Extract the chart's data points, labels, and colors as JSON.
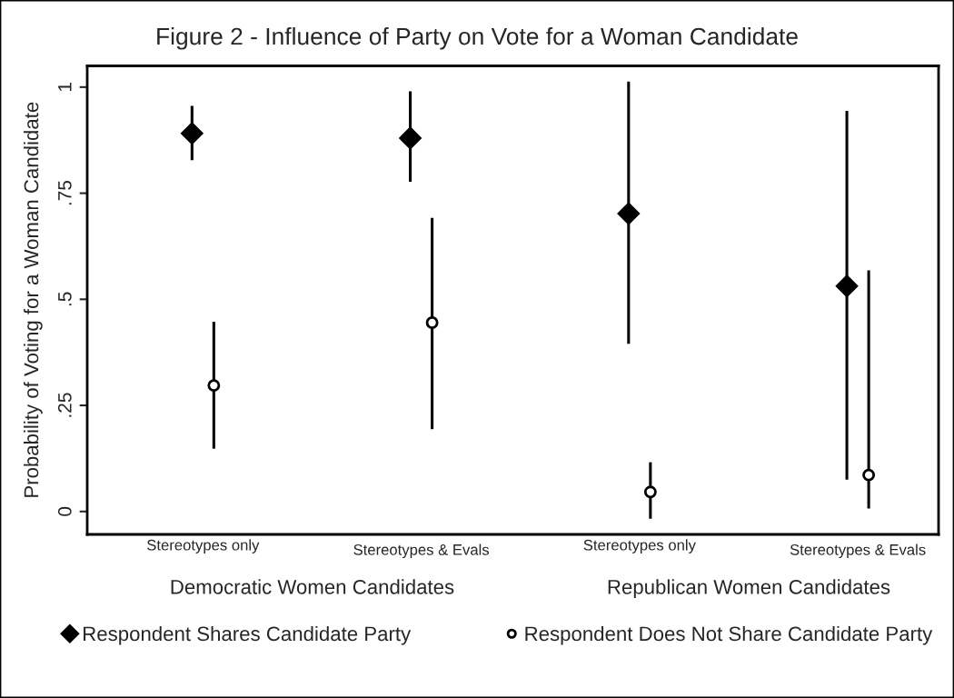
{
  "chart_data": {
    "type": "scatter",
    "title": "Figure 2 - Influence of Party on Vote for a Woman Candidate",
    "ylabel": "Probability of Voting for a Woman Candidate",
    "categories": [
      "Stereotypes only",
      "Stereotypes & Evals",
      "Stereotypes only",
      "Stereotypes & Evals"
    ],
    "annotations": [
      "Democratic Women Candidates",
      "Republican Women Candidates"
    ],
    "series": [
      {
        "name": "Respondent Shares Candidate Party",
        "color": "#000000",
        "marker": "diamond",
        "values": [
          0.891,
          0.88,
          0.702,
          0.531
        ],
        "errors": [
          [
            0.828,
            0.956
          ],
          [
            0.777,
            0.99
          ],
          [
            0.395,
            1.013
          ],
          [
            0.075,
            0.944
          ]
        ]
      },
      {
        "name": "Respondent Does Not Share Candidate Party",
        "color": "#000000",
        "marker": "circle",
        "values": [
          0.297,
          0.445,
          0.046,
          0.086
        ],
        "errors": [
          [
            0.148,
            0.447
          ],
          [
            0.194,
            0.692
          ],
          [
            -0.017,
            0.116
          ],
          [
            0.007,
            0.568
          ]
        ]
      }
    ],
    "ylim": [
      -0.054,
      1.05
    ],
    "yticks": [
      {
        "value": 0,
        "label": "0"
      },
      {
        "value": 0.25,
        "label": ".25"
      },
      {
        "value": 0.5,
        "label": ".5"
      },
      {
        "value": 0.75,
        "label": ".75"
      },
      {
        "value": 1,
        "label": "1"
      }
    ],
    "legend": "bottom"
  }
}
